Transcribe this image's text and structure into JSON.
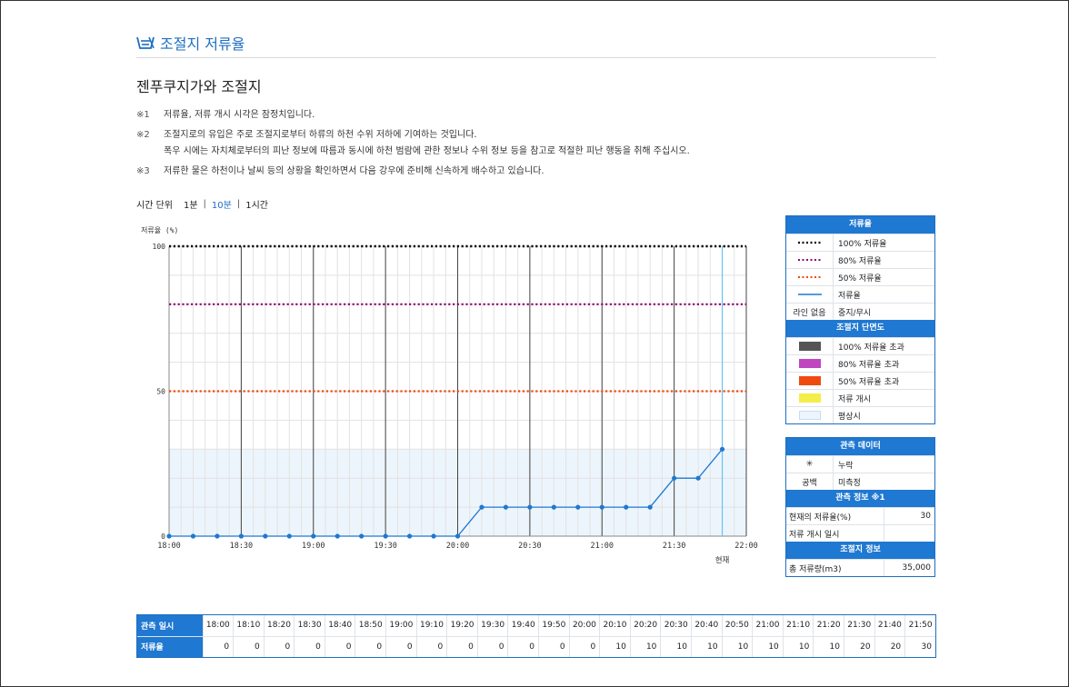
{
  "header": {
    "title": "조절지 저류율",
    "icon": "dam-icon"
  },
  "subtitle": "젠푸쿠지가와 조절지",
  "notes": [
    {
      "mark": "※1",
      "lines": [
        "저류율, 저류 개시 시각은 잠정치입니다."
      ]
    },
    {
      "mark": "※2",
      "lines": [
        "조절지로의 유입은 주로 조절지로부터 하류의 하천 수위 저하에 기여하는 것입니다.",
        "폭우 시에는 자치체로부터의 피난 정보에 따름과 동시에 하천 범람에 관한 정보나 수위 정보 등을 참고로 적절한 피난 행동을 취해 주십시오."
      ]
    },
    {
      "mark": "※3",
      "lines": [
        "저류한 물은 하천이나 날씨 등의 상황을 확인하면서 다음 강우에 준비해 신속하게 배수하고 있습니다."
      ]
    }
  ],
  "time_unit": {
    "label": "시간 단위",
    "options": [
      "1분",
      "10분",
      "1시간"
    ],
    "selected": "10분"
  },
  "chart_data": {
    "type": "line",
    "ylabel": "저류율 (%)",
    "ylim": [
      0,
      100
    ],
    "yticks": [
      "100",
      "50",
      "0"
    ],
    "x_ticks": [
      "18:00",
      "18:30",
      "19:00",
      "19:30",
      "20:00",
      "20:30",
      "21:00",
      "21:30",
      "22:00"
    ],
    "current_label": "현재",
    "current_time": "21:50",
    "x": [
      "18:00",
      "18:10",
      "18:20",
      "18:30",
      "18:40",
      "18:50",
      "19:00",
      "19:10",
      "19:20",
      "19:30",
      "19:40",
      "19:50",
      "20:00",
      "20:10",
      "20:20",
      "20:30",
      "20:40",
      "20:50",
      "21:00",
      "21:10",
      "21:20",
      "21:30",
      "21:40",
      "21:50"
    ],
    "series": [
      {
        "name": "저류율",
        "values": [
          0,
          0,
          0,
          0,
          0,
          0,
          0,
          0,
          0,
          0,
          0,
          0,
          0,
          10,
          10,
          10,
          10,
          10,
          10,
          10,
          10,
          20,
          20,
          30
        ],
        "color": "#1f78d1"
      }
    ],
    "reference_lines": [
      {
        "name": "100% 저류율",
        "value": 100,
        "color": "#000000"
      },
      {
        "name": "80% 저류율",
        "value": 80,
        "color": "#8b0a6e"
      },
      {
        "name": "50% 저류율",
        "value": 50,
        "color": "#ee4a0c"
      }
    ],
    "normal_band_max": 30
  },
  "legend": {
    "title": "저류율",
    "rows": [
      {
        "symbol": "dotted-black",
        "label": "100% 저류율"
      },
      {
        "symbol": "dotted-purple",
        "label": "80% 저류율"
      },
      {
        "symbol": "dotted-orange",
        "label": "50% 저류율"
      },
      {
        "symbol": "solid-blue",
        "label": "저류율"
      },
      {
        "symbol_text": "라인 없음",
        "label": "중지/무시"
      }
    ],
    "section_title": "조절지 단면도",
    "swatches": [
      {
        "color": "#555555",
        "label": "100% 저류율 초과"
      },
      {
        "color": "#c046c0",
        "label": "80% 저류율 초과"
      },
      {
        "color": "#f04a10",
        "label": "50% 저류율 초과"
      },
      {
        "color": "#f4ee4a",
        "label": "저류 개시"
      },
      {
        "color": "#edf5fc",
        "label": "평상시"
      }
    ]
  },
  "observation": {
    "title": "관측 데이터",
    "rows": [
      {
        "symbol": "✳",
        "label": "누락"
      },
      {
        "symbol": "공백",
        "label": "미측정"
      }
    ],
    "info_title": "관측 정보 ※1",
    "info_rows": [
      {
        "label": "현재의 저류율(%)",
        "value": "30"
      },
      {
        "label": "저류 개시 일시",
        "value": ""
      }
    ],
    "dam_title": "조절지 정보",
    "dam_rows": [
      {
        "label": "총 저류량(m3)",
        "value": "35,000"
      }
    ]
  },
  "table": {
    "time_header": "관측 일시",
    "rate_header": "저류율",
    "times": [
      "18:00",
      "18:10",
      "18:20",
      "18:30",
      "18:40",
      "18:50",
      "19:00",
      "19:10",
      "19:20",
      "19:30",
      "19:40",
      "19:50",
      "20:00",
      "20:10",
      "20:20",
      "20:30",
      "20:40",
      "20:50",
      "21:00",
      "21:10",
      "21:20",
      "21:30",
      "21:40",
      "21:50"
    ],
    "values": [
      "0",
      "0",
      "0",
      "0",
      "0",
      "0",
      "0",
      "0",
      "0",
      "0",
      "0",
      "0",
      "0",
      "10",
      "10",
      "10",
      "10",
      "10",
      "10",
      "10",
      "10",
      "20",
      "20",
      "30"
    ]
  }
}
